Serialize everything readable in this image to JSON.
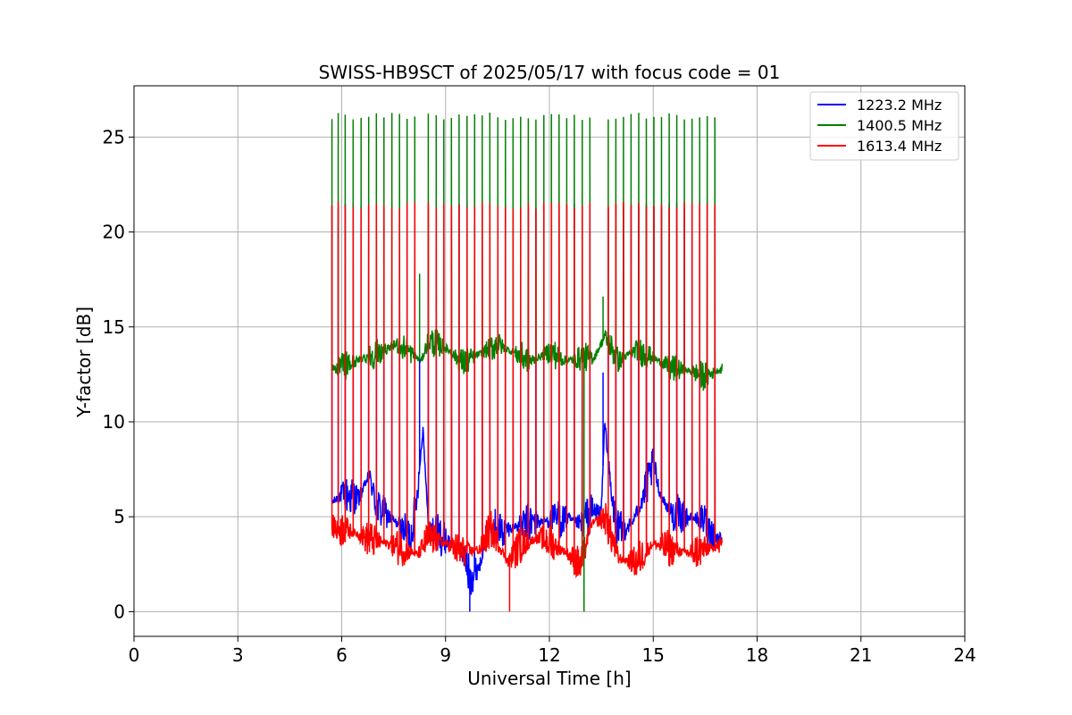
{
  "chart_data": {
    "type": "line",
    "title": "SWISS-HB9SCT of 2025/05/17 with focus code = 01",
    "xlabel": "Universal Time [h]",
    "ylabel": "Y-factor [dB]",
    "xlim": [
      0,
      24
    ],
    "ylim": [
      -1.3,
      27.7
    ],
    "xticks": [
      0,
      3,
      6,
      9,
      12,
      15,
      18,
      21,
      24
    ],
    "yticks": [
      0,
      5,
      10,
      15,
      20,
      25
    ],
    "xtick_labels": [
      "0",
      "3",
      "6",
      "9",
      "12",
      "15",
      "18",
      "21",
      "24"
    ],
    "ytick_labels": [
      "0",
      "5",
      "10",
      "15",
      "20",
      "25"
    ],
    "grid": true,
    "legend_position": "top-right",
    "spike_times": [
      5.72,
      5.9,
      6.1,
      6.33,
      6.56,
      6.78,
      7.0,
      7.22,
      7.45,
      7.67,
      7.89,
      8.11,
      8.5,
      8.73,
      8.95,
      9.17,
      9.39,
      9.62,
      9.84,
      10.06,
      10.28,
      10.51,
      10.73,
      10.95,
      11.17,
      11.39,
      11.61,
      11.84,
      12.06,
      12.28,
      12.5,
      12.72,
      12.95,
      13.17,
      13.7,
      13.92,
      14.14,
      14.36,
      14.58,
      14.8,
      15.02,
      15.24,
      15.46,
      15.68,
      15.9,
      16.12,
      16.34,
      16.56,
      16.78
    ],
    "series": [
      {
        "name": "1223.2 MHz",
        "color": "#0000ff",
        "x_range": [
          5.72,
          17.0
        ],
        "baseline": [
          [
            5.7,
            5.7
          ],
          [
            6.0,
            6.2
          ],
          [
            6.5,
            6.0
          ],
          [
            6.8,
            7.2
          ],
          [
            7.0,
            5.5
          ],
          [
            7.5,
            4.8
          ],
          [
            8.0,
            4.0
          ],
          [
            8.2,
            6.5
          ],
          [
            8.35,
            9.7
          ],
          [
            8.5,
            4.5
          ],
          [
            9.0,
            3.8
          ],
          [
            9.5,
            3.2
          ],
          [
            9.7,
            1.8
          ],
          [
            10.0,
            2.5
          ],
          [
            10.3,
            4.8
          ],
          [
            10.6,
            4.2
          ],
          [
            11.0,
            4.5
          ],
          [
            11.5,
            4.7
          ],
          [
            12.0,
            4.8
          ],
          [
            12.5,
            4.9
          ],
          [
            12.9,
            4.6
          ],
          [
            13.2,
            5.2
          ],
          [
            13.5,
            5.3
          ],
          [
            13.6,
            10.1
          ],
          [
            13.8,
            5.8
          ],
          [
            14.0,
            4.2
          ],
          [
            14.4,
            4.7
          ],
          [
            14.8,
            6.5
          ],
          [
            15.0,
            7.8
          ],
          [
            15.2,
            6.2
          ],
          [
            15.5,
            5.2
          ],
          [
            16.0,
            5.0
          ],
          [
            16.5,
            4.8
          ],
          [
            16.8,
            3.8
          ],
          [
            17.0,
            4.0
          ]
        ],
        "spike_peak": 21.4
      },
      {
        "name": "1400.5 MHz",
        "color": "#008000",
        "x_range": [
          5.72,
          17.0
        ],
        "baseline": [
          [
            5.7,
            12.8
          ],
          [
            6.2,
            13.0
          ],
          [
            6.8,
            13.5
          ],
          [
            7.3,
            13.8
          ],
          [
            7.6,
            14.1
          ],
          [
            8.0,
            13.6
          ],
          [
            8.3,
            13.2
          ],
          [
            8.5,
            14.3
          ],
          [
            9.0,
            13.9
          ],
          [
            9.5,
            13.1
          ],
          [
            10.0,
            13.6
          ],
          [
            10.5,
            14.1
          ],
          [
            11.0,
            13.6
          ],
          [
            11.5,
            13.2
          ],
          [
            12.0,
            13.7
          ],
          [
            12.5,
            13.2
          ],
          [
            13.0,
            13.4
          ],
          [
            13.3,
            13.4
          ],
          [
            13.6,
            14.5
          ],
          [
            14.0,
            13.2
          ],
          [
            14.5,
            13.8
          ],
          [
            15.0,
            13.4
          ],
          [
            15.5,
            12.8
          ],
          [
            16.0,
            12.7
          ],
          [
            16.5,
            12.4
          ],
          [
            17.0,
            12.8
          ]
        ],
        "spike_peak": 26.1
      },
      {
        "name": "1613.4 MHz",
        "color": "#ff0000",
        "x_range": [
          5.72,
          17.0
        ],
        "baseline": [
          [
            5.7,
            4.5
          ],
          [
            6.2,
            4.3
          ],
          [
            6.8,
            3.8
          ],
          [
            7.3,
            3.6
          ],
          [
            7.8,
            3.3
          ],
          [
            8.2,
            3.0
          ],
          [
            8.5,
            3.9
          ],
          [
            9.0,
            3.6
          ],
          [
            9.5,
            3.1
          ],
          [
            10.0,
            3.3
          ],
          [
            10.3,
            4.4
          ],
          [
            10.8,
            2.6
          ],
          [
            11.2,
            3.6
          ],
          [
            11.8,
            3.9
          ],
          [
            12.5,
            3.1
          ],
          [
            12.9,
            2.4
          ],
          [
            13.2,
            4.6
          ],
          [
            13.6,
            5.0
          ],
          [
            14.0,
            2.8
          ],
          [
            14.5,
            2.6
          ],
          [
            15.0,
            3.6
          ],
          [
            15.5,
            3.3
          ],
          [
            16.0,
            3.1
          ],
          [
            16.5,
            3.3
          ],
          [
            17.0,
            3.5
          ]
        ],
        "spike_peak": 21.4
      }
    ],
    "special_spikes": [
      {
        "series": "1223.2 MHz",
        "x": 8.25,
        "y": 13.3
      },
      {
        "series": "1400.5 MHz",
        "x": 8.25,
        "y": 17.8
      },
      {
        "series": "1223.2 MHz",
        "x": 13.55,
        "y": 12.6
      },
      {
        "series": "1400.5 MHz",
        "x": 13.55,
        "y": 16.6
      },
      {
        "series": "1400.5 MHz",
        "x": 13.0,
        "y": 0.0
      },
      {
        "series": "1223.2 MHz",
        "x": 9.7,
        "y": 0.0
      },
      {
        "series": "1613.4 MHz",
        "x": 10.85,
        "y": 0.0
      }
    ]
  }
}
